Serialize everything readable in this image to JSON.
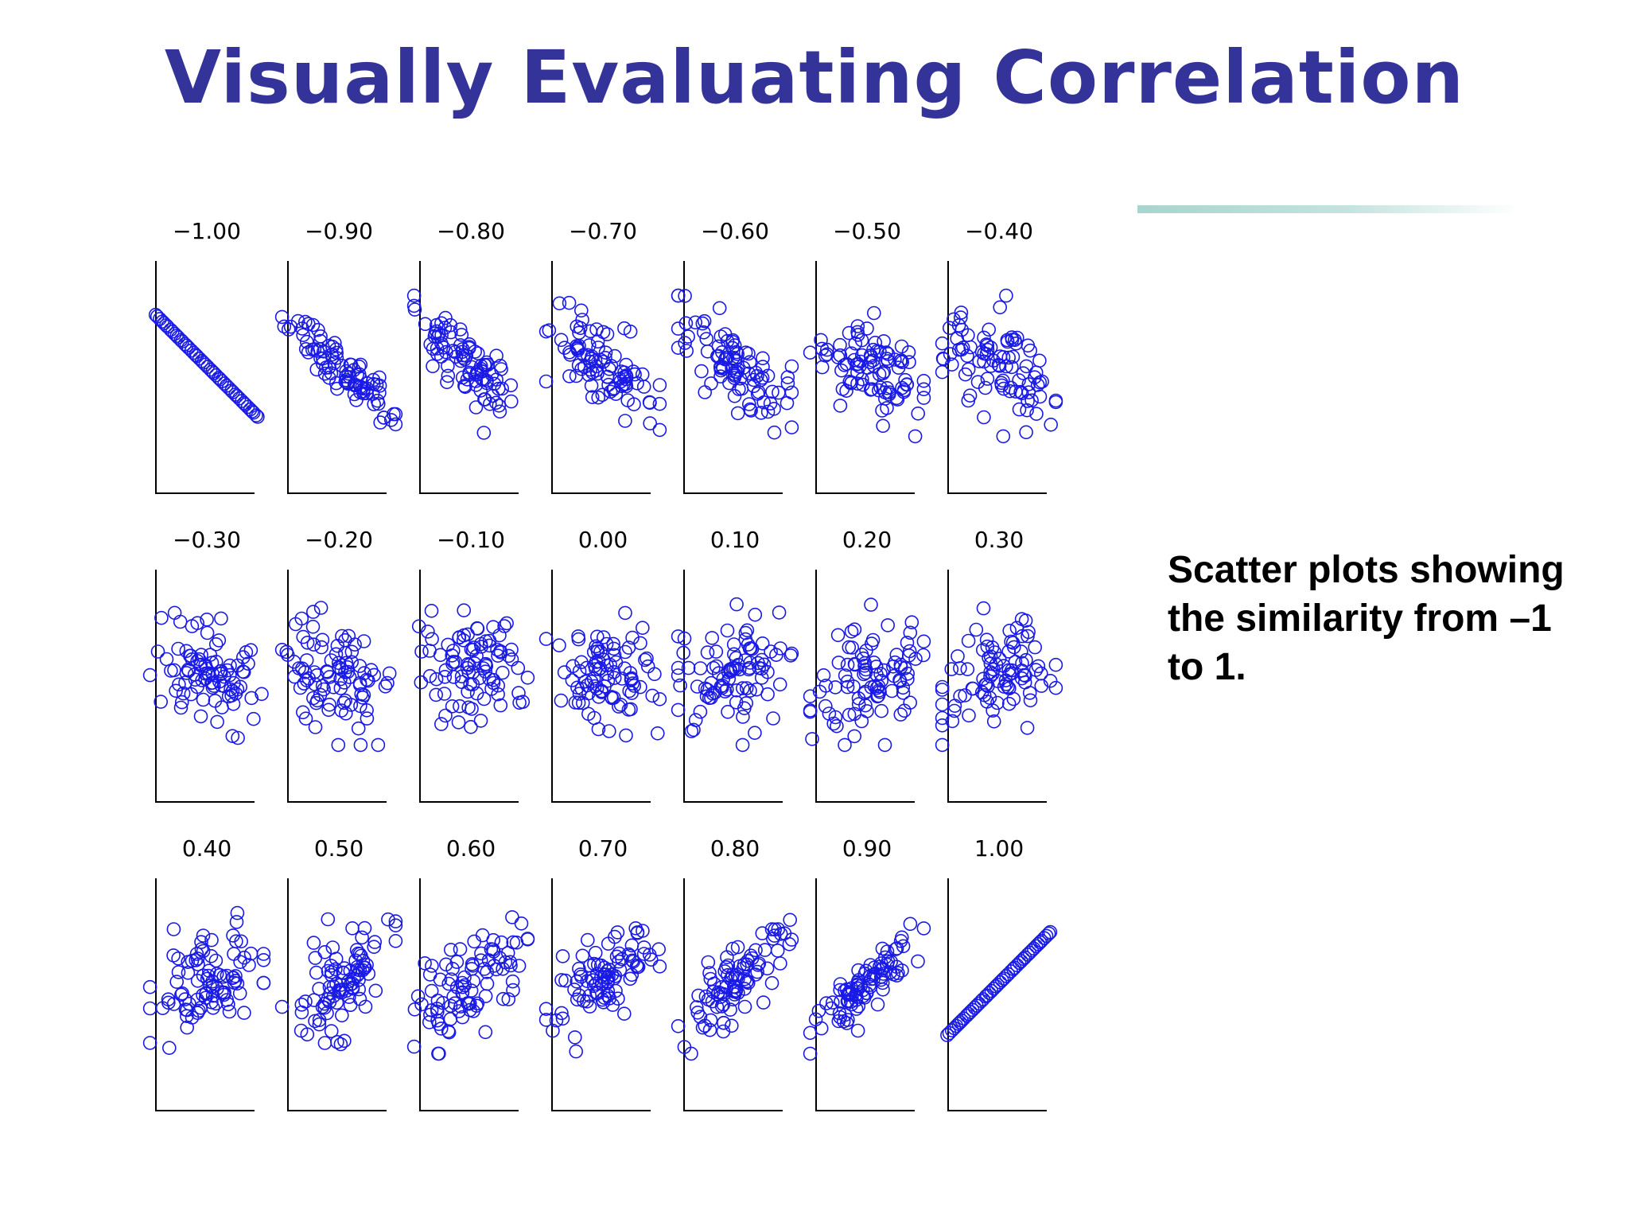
{
  "title": "Visually Evaluating Correlation",
  "caption": "Scatter plots showing the similarity from –1 to 1.",
  "colors": {
    "title": "#333399",
    "points": "#1a1ae6",
    "accent_line": "#a9d4cd"
  },
  "chart_data": {
    "type": "scatter",
    "title": "",
    "xlabel": "",
    "ylabel": "",
    "grid": false,
    "layout": "3 rows x 7 columns of small scatter panels",
    "panels": [
      {
        "label": "-1.00",
        "r": -1.0
      },
      {
        "label": "-0.90",
        "r": -0.9
      },
      {
        "label": "-0.80",
        "r": -0.8
      },
      {
        "label": "-0.70",
        "r": -0.7
      },
      {
        "label": "-0.60",
        "r": -0.6
      },
      {
        "label": "-0.50",
        "r": -0.5
      },
      {
        "label": "-0.40",
        "r": -0.4
      },
      {
        "label": "-0.30",
        "r": -0.3
      },
      {
        "label": "-0.20",
        "r": -0.2
      },
      {
        "label": "-0.10",
        "r": -0.1
      },
      {
        "label": "0.00",
        "r": 0.0
      },
      {
        "label": "0.10",
        "r": 0.1
      },
      {
        "label": "0.20",
        "r": 0.2
      },
      {
        "label": "0.30",
        "r": 0.3
      },
      {
        "label": "0.40",
        "r": 0.4
      },
      {
        "label": "0.50",
        "r": 0.5
      },
      {
        "label": "0.60",
        "r": 0.6
      },
      {
        "label": "0.70",
        "r": 0.7
      },
      {
        "label": "0.80",
        "r": 0.8
      },
      {
        "label": "0.90",
        "r": 0.9
      },
      {
        "label": "1.00",
        "r": 1.0
      }
    ]
  }
}
